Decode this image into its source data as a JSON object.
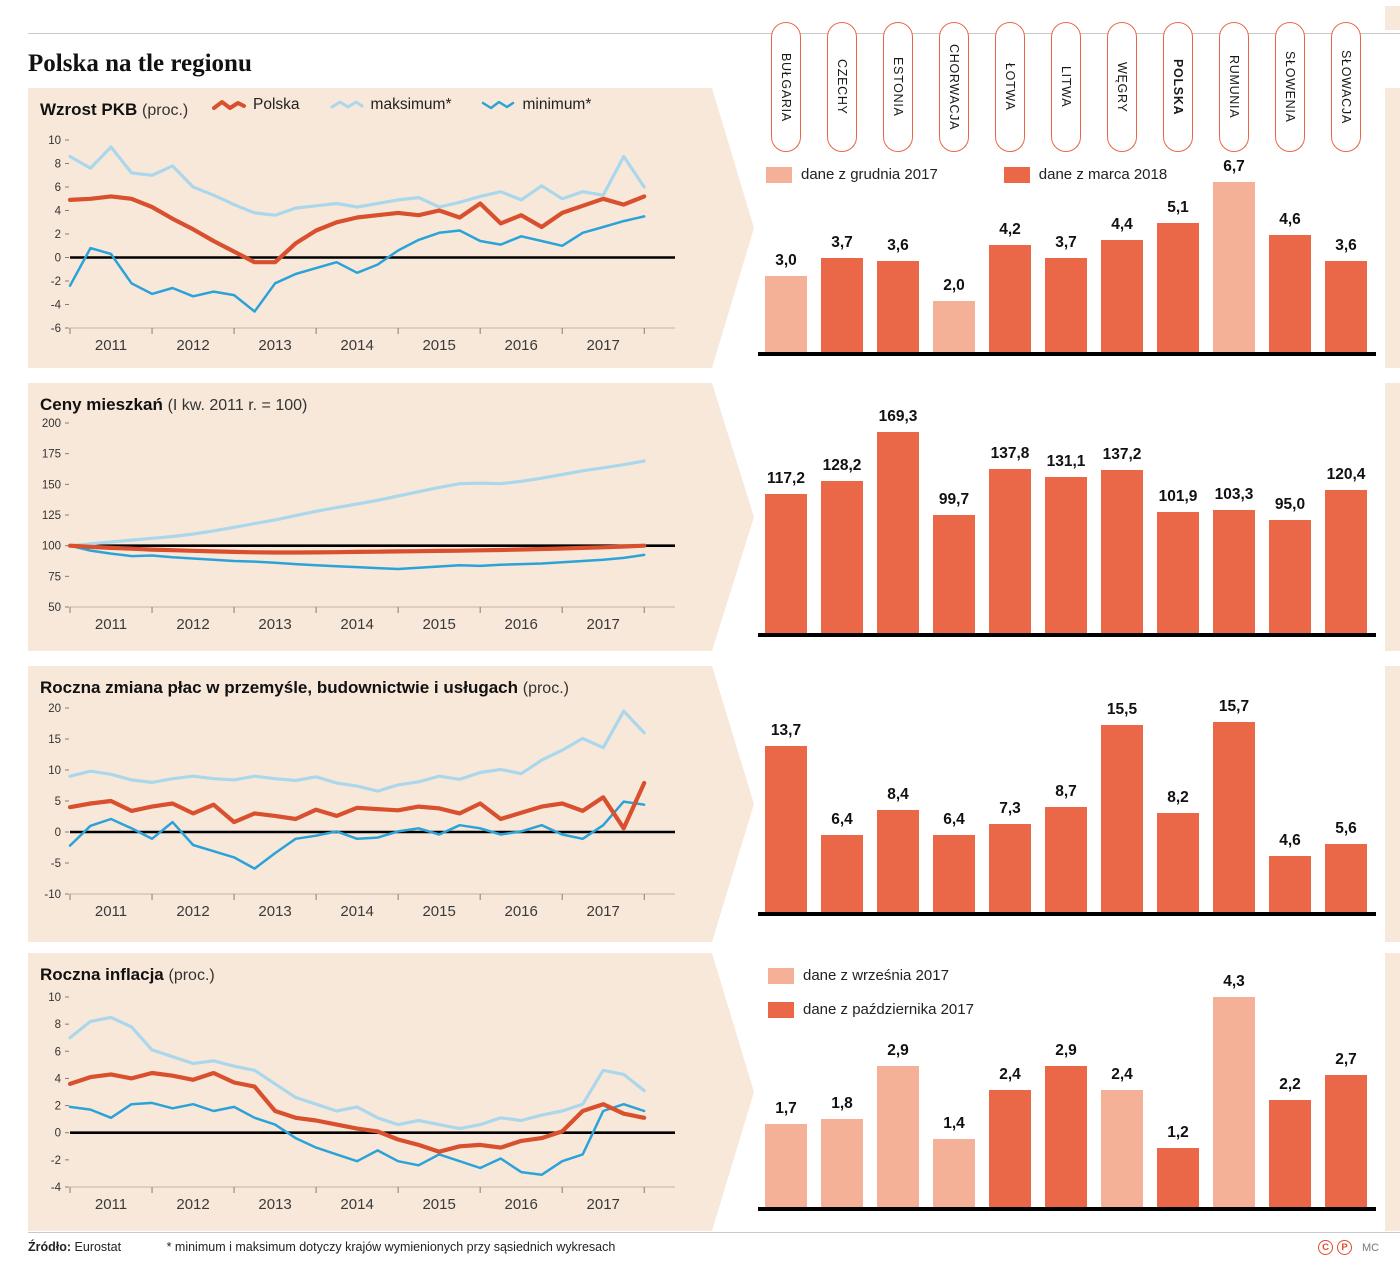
{
  "title": "Polska na tle regionu",
  "countries": [
    "BUŁGARIA",
    "CZECHY",
    "ESTONIA",
    "CHORWACJA",
    "ŁOTWA",
    "LITWA",
    "WĘGRY",
    "POLSKA",
    "RUMUNIA",
    "SŁOWENIA",
    "SŁOWACJA"
  ],
  "colors": {
    "panel_bg": "#f8e8da",
    "bar_dark": "#ea6847",
    "bar_light": "#f5b198",
    "line_polska": "#d8502e",
    "line_maksimum": "#abd7ec",
    "line_minimum": "#2ba3d8",
    "pill_border": "#e96746"
  },
  "panels": [
    {
      "title": "Wzrost PKB",
      "subtitle": "(proc.)",
      "line_legend": [
        {
          "label": "Polska"
        },
        {
          "label": "maksimum*"
        },
        {
          "label": "minimum*"
        }
      ],
      "bar_legend": [
        {
          "label": "dane z grudnia 2017",
          "variant": "light"
        },
        {
          "label": "dane z marca 2018",
          "variant": "dark"
        }
      ]
    },
    {
      "title": "Ceny mieszkań",
      "subtitle": "(I kw. 2011 r. = 100)",
      "line_legend": [],
      "bar_legend": []
    },
    {
      "title": "Roczna zmiana płac w przemyśle, budownictwie i usługach",
      "subtitle": "(proc.)",
      "line_legend": [],
      "bar_legend": []
    },
    {
      "title": "Roczna inflacja",
      "subtitle": "(proc.)",
      "line_legend": [],
      "bar_legend": [
        {
          "label": "dane z września 2017",
          "variant": "light"
        },
        {
          "label": "dane z października 2017",
          "variant": "dark"
        }
      ]
    }
  ],
  "chart_data": [
    {
      "type": "line",
      "panel": 0,
      "title": "Wzrost PKB (proc.)",
      "ylim": [
        -6,
        10
      ],
      "yticks": [
        10,
        8,
        6,
        4,
        2,
        0,
        -2,
        -4,
        -6
      ],
      "baseline": 0,
      "years": [
        "2011",
        "2012",
        "2013",
        "2014",
        "2015",
        "2016",
        "2017"
      ],
      "grid": false,
      "legend_position": "top",
      "series": [
        {
          "name": "maksimum",
          "color": "#abd7ec",
          "width": 3.2,
          "values": [
            8.6,
            7.6,
            9.4,
            7.2,
            7.0,
            7.8,
            6.0,
            5.3,
            4.5,
            3.8,
            3.6,
            4.2,
            4.4,
            4.6,
            4.3,
            4.6,
            4.9,
            5.1,
            4.3,
            4.7,
            5.2,
            5.6,
            4.9,
            6.1,
            5.0,
            5.6,
            5.3,
            8.6,
            6.0
          ]
        },
        {
          "name": "minimum",
          "color": "#2ba3d8",
          "width": 2.5,
          "values": [
            -2.4,
            0.8,
            0.3,
            -2.2,
            -3.1,
            -2.6,
            -3.3,
            -2.9,
            -3.2,
            -4.6,
            -2.2,
            -1.4,
            -0.9,
            -0.4,
            -1.3,
            -0.6,
            0.6,
            1.5,
            2.1,
            2.3,
            1.4,
            1.1,
            1.8,
            1.4,
            1.0,
            2.1,
            2.6,
            3.1,
            3.5
          ]
        },
        {
          "name": "Polska",
          "color": "#d8502e",
          "width": 4.2,
          "values": [
            4.9,
            5.0,
            5.2,
            5.0,
            4.3,
            3.3,
            2.4,
            1.4,
            0.5,
            -0.4,
            -0.4,
            1.2,
            2.3,
            3.0,
            3.4,
            3.6,
            3.8,
            3.6,
            4.0,
            3.4,
            4.6,
            2.9,
            3.6,
            2.6,
            3.8,
            4.4,
            5.0,
            4.5,
            5.2
          ]
        }
      ]
    },
    {
      "type": "bar",
      "panel": 0,
      "title": "Wzrost PKB (proc.)",
      "categories": [
        "BUŁGARIA",
        "CZECHY",
        "ESTONIA",
        "CHORWACJA",
        "ŁOTWA",
        "LITWA",
        "WĘGRY",
        "POLSKA",
        "RUMUNIA",
        "SŁOWENIA",
        "SŁOWACJA"
      ],
      "values": [
        3.0,
        3.7,
        3.6,
        2.0,
        4.2,
        3.7,
        4.4,
        5.1,
        6.7,
        4.6,
        3.6
      ],
      "labels": [
        "3,0",
        "3,7",
        "3,6",
        "2,0",
        "4,2",
        "3,7",
        "4,4",
        "5,1",
        "6,7",
        "4,6",
        "3,6"
      ],
      "light": [
        true,
        false,
        false,
        true,
        false,
        false,
        false,
        false,
        true,
        false,
        false
      ],
      "ylim": [
        0,
        7
      ]
    },
    {
      "type": "line",
      "panel": 1,
      "title": "Ceny mieszkań (I kw. 2011 r. = 100)",
      "ylim": [
        50,
        200
      ],
      "yticks": [
        200,
        175,
        150,
        125,
        100,
        75,
        50
      ],
      "baseline": 100,
      "years": [
        "2011",
        "2012",
        "2013",
        "2014",
        "2015",
        "2016",
        "2017"
      ],
      "grid": false,
      "series": [
        {
          "name": "maksimum",
          "color": "#abd7ec",
          "width": 3.2,
          "values": [
            100,
            101.5,
            103,
            104.5,
            106,
            107.5,
            109.5,
            112,
            115,
            118,
            121,
            124.5,
            128,
            131,
            134,
            137,
            140.5,
            144,
            147.5,
            150.5,
            151,
            150.5,
            152.5,
            155,
            158,
            161,
            163.5,
            166,
            169
          ]
        },
        {
          "name": "minimum",
          "color": "#2ba3d8",
          "width": 2.5,
          "values": [
            100,
            96,
            93.5,
            91.5,
            92,
            90.5,
            89.5,
            88.5,
            87.5,
            87,
            86,
            85,
            84,
            83.2,
            82.5,
            81.7,
            81,
            82,
            83,
            84,
            83.5,
            84.5,
            85,
            85.5,
            86.5,
            87.5,
            88.5,
            90,
            92.5
          ]
        },
        {
          "name": "Polska",
          "color": "#d8502e",
          "width": 4.2,
          "values": [
            100,
            99,
            98.2,
            97.5,
            96.8,
            96.3,
            95.8,
            95.3,
            94.9,
            94.6,
            94.4,
            94.4,
            94.5,
            94.7,
            94.9,
            95.1,
            95.3,
            95.5,
            95.7,
            95.9,
            96.2,
            96.5,
            96.9,
            97.3,
            97.7,
            98.2,
            98.7,
            99.3,
            100
          ]
        }
      ]
    },
    {
      "type": "bar",
      "panel": 1,
      "title": "Ceny mieszkań (I kw. 2011 r. = 100)",
      "categories": [
        "BUŁGARIA",
        "CZECHY",
        "ESTONIA",
        "CHORWACJA",
        "ŁOTWA",
        "LITWA",
        "WĘGRY",
        "POLSKA",
        "RUMUNIA",
        "SŁOWENIA",
        "SŁOWACJA"
      ],
      "values": [
        117.2,
        128.2,
        169.3,
        99.7,
        137.8,
        131.1,
        137.2,
        101.9,
        103.3,
        95.0,
        120.4
      ],
      "labels": [
        "117,2",
        "128,2",
        "169,3",
        "99,7",
        "137,8",
        "131,1",
        "137,2",
        "101,9",
        "103,3",
        "95,0",
        "120,4"
      ],
      "light": [
        false,
        false,
        false,
        false,
        false,
        false,
        false,
        false,
        false,
        false,
        false
      ],
      "ylim": [
        0,
        170
      ]
    },
    {
      "type": "line",
      "panel": 2,
      "title": "Roczna zmiana płac w przemyśle, budownictwie i usługach (proc.)",
      "ylim": [
        -10,
        20
      ],
      "yticks": [
        20,
        15,
        10,
        5,
        0,
        -5,
        -10
      ],
      "baseline": 0,
      "years": [
        "2011",
        "2012",
        "2013",
        "2014",
        "2015",
        "2016",
        "2017"
      ],
      "grid": false,
      "series": [
        {
          "name": "maksimum",
          "color": "#abd7ec",
          "width": 3.2,
          "values": [
            9.0,
            9.8,
            9.3,
            8.4,
            8.0,
            8.6,
            9.0,
            8.6,
            8.4,
            9.0,
            8.6,
            8.3,
            8.9,
            7.9,
            7.4,
            6.6,
            7.6,
            8.1,
            9.0,
            8.5,
            9.6,
            10.1,
            9.4,
            11.6,
            13.2,
            15.1,
            13.6,
            19.5,
            16.0
          ]
        },
        {
          "name": "minimum",
          "color": "#2ba3d8",
          "width": 2.5,
          "values": [
            -2.2,
            1.0,
            2.1,
            0.6,
            -1.1,
            1.6,
            -2.1,
            -3.1,
            -4.1,
            -5.9,
            -3.4,
            -1.1,
            -0.6,
            0.1,
            -1.1,
            -0.9,
            0.1,
            0.6,
            -0.4,
            1.1,
            0.6,
            -0.4,
            0.1,
            1.1,
            -0.4,
            -1.1,
            1.1,
            4.9,
            4.4
          ]
        },
        {
          "name": "Polska",
          "color": "#d8502e",
          "width": 4.2,
          "values": [
            4.0,
            4.6,
            5.0,
            3.4,
            4.1,
            4.6,
            3.0,
            4.4,
            1.6,
            3.0,
            2.6,
            2.1,
            3.6,
            2.6,
            3.9,
            3.7,
            3.5,
            4.1,
            3.8,
            3.0,
            4.6,
            2.1,
            3.1,
            4.1,
            4.6,
            3.4,
            5.6,
            0.6,
            7.9
          ]
        }
      ]
    },
    {
      "type": "bar",
      "panel": 2,
      "title": "Roczna zmiana płac (proc.)",
      "categories": [
        "BUŁGARIA",
        "CZECHY",
        "ESTONIA",
        "CHORWACJA",
        "ŁOTWA",
        "LITWA",
        "WĘGRY",
        "POLSKA",
        "RUMUNIA",
        "SŁOWENIA",
        "SŁOWACJA"
      ],
      "values": [
        13.7,
        6.4,
        8.4,
        6.4,
        7.3,
        8.7,
        15.5,
        8.2,
        15.7,
        4.6,
        5.6
      ],
      "labels": [
        "13,7",
        "6,4",
        "8,4",
        "6,4",
        "7,3",
        "8,7",
        "15,5",
        "8,2",
        "15,7",
        "4,6",
        "5,6"
      ],
      "light": [
        false,
        false,
        false,
        false,
        false,
        false,
        false,
        false,
        false,
        false,
        false
      ],
      "ylim": [
        0,
        16
      ]
    },
    {
      "type": "line",
      "panel": 3,
      "title": "Roczna inflacja (proc.)",
      "ylim": [
        -4,
        10
      ],
      "yticks": [
        10,
        8,
        6,
        4,
        2,
        0,
        -2,
        -4
      ],
      "baseline": 0,
      "years": [
        "2011",
        "2012",
        "2013",
        "2014",
        "2015",
        "2016",
        "2017"
      ],
      "grid": false,
      "series": [
        {
          "name": "maksimum",
          "color": "#abd7ec",
          "width": 3.2,
          "values": [
            7.0,
            8.2,
            8.5,
            7.8,
            6.1,
            5.6,
            5.1,
            5.3,
            4.9,
            4.6,
            3.6,
            2.6,
            2.1,
            1.6,
            1.9,
            1.1,
            0.6,
            0.9,
            0.6,
            0.3,
            0.6,
            1.1,
            0.9,
            1.3,
            1.6,
            2.1,
            4.6,
            4.3,
            3.1
          ]
        },
        {
          "name": "minimum",
          "color": "#2ba3d8",
          "width": 2.5,
          "values": [
            1.9,
            1.7,
            1.1,
            2.1,
            2.2,
            1.8,
            2.1,
            1.6,
            1.9,
            1.1,
            0.6,
            -0.4,
            -1.1,
            -1.6,
            -2.1,
            -1.3,
            -2.1,
            -2.4,
            -1.6,
            -2.1,
            -2.6,
            -1.9,
            -2.9,
            -3.1,
            -2.1,
            -1.6,
            1.6,
            2.1,
            1.6
          ]
        },
        {
          "name": "Polska",
          "color": "#d8502e",
          "width": 4.2,
          "values": [
            3.6,
            4.1,
            4.3,
            4.0,
            4.4,
            4.2,
            3.9,
            4.4,
            3.7,
            3.4,
            1.6,
            1.1,
            0.9,
            0.6,
            0.3,
            0.1,
            -0.5,
            -0.9,
            -1.4,
            -1.0,
            -0.9,
            -1.1,
            -0.6,
            -0.4,
            0.1,
            1.6,
            2.1,
            1.4,
            1.1
          ]
        }
      ]
    },
    {
      "type": "bar",
      "panel": 3,
      "title": "Roczna inflacja (proc.)",
      "categories": [
        "BUŁGARIA",
        "CZECHY",
        "ESTONIA",
        "CHORWACJA",
        "ŁOTWA",
        "LITWA",
        "WĘGRY",
        "POLSKA",
        "RUMUNIA",
        "SŁOWENIA",
        "SŁOWACJA"
      ],
      "values": [
        1.7,
        1.8,
        2.9,
        1.4,
        2.4,
        2.9,
        2.4,
        1.2,
        4.3,
        2.2,
        2.7
      ],
      "labels": [
        "1,7",
        "1,8",
        "2,9",
        "1,4",
        "2,4",
        "2,9",
        "2,4",
        "1,2",
        "4,3",
        "2,2",
        "2,7"
      ],
      "light": [
        true,
        true,
        true,
        true,
        false,
        false,
        true,
        false,
        true,
        false,
        false
      ],
      "ylim": [
        0,
        4.5
      ]
    }
  ],
  "footer": {
    "source_label": "Źródło:",
    "source": "Eurostat",
    "note": "* minimum i maksimum dotyczy krajów wymienionych przy sąsiednich wykresach",
    "copyright_c": "C",
    "copyright_p": "P",
    "credits": "MC"
  }
}
